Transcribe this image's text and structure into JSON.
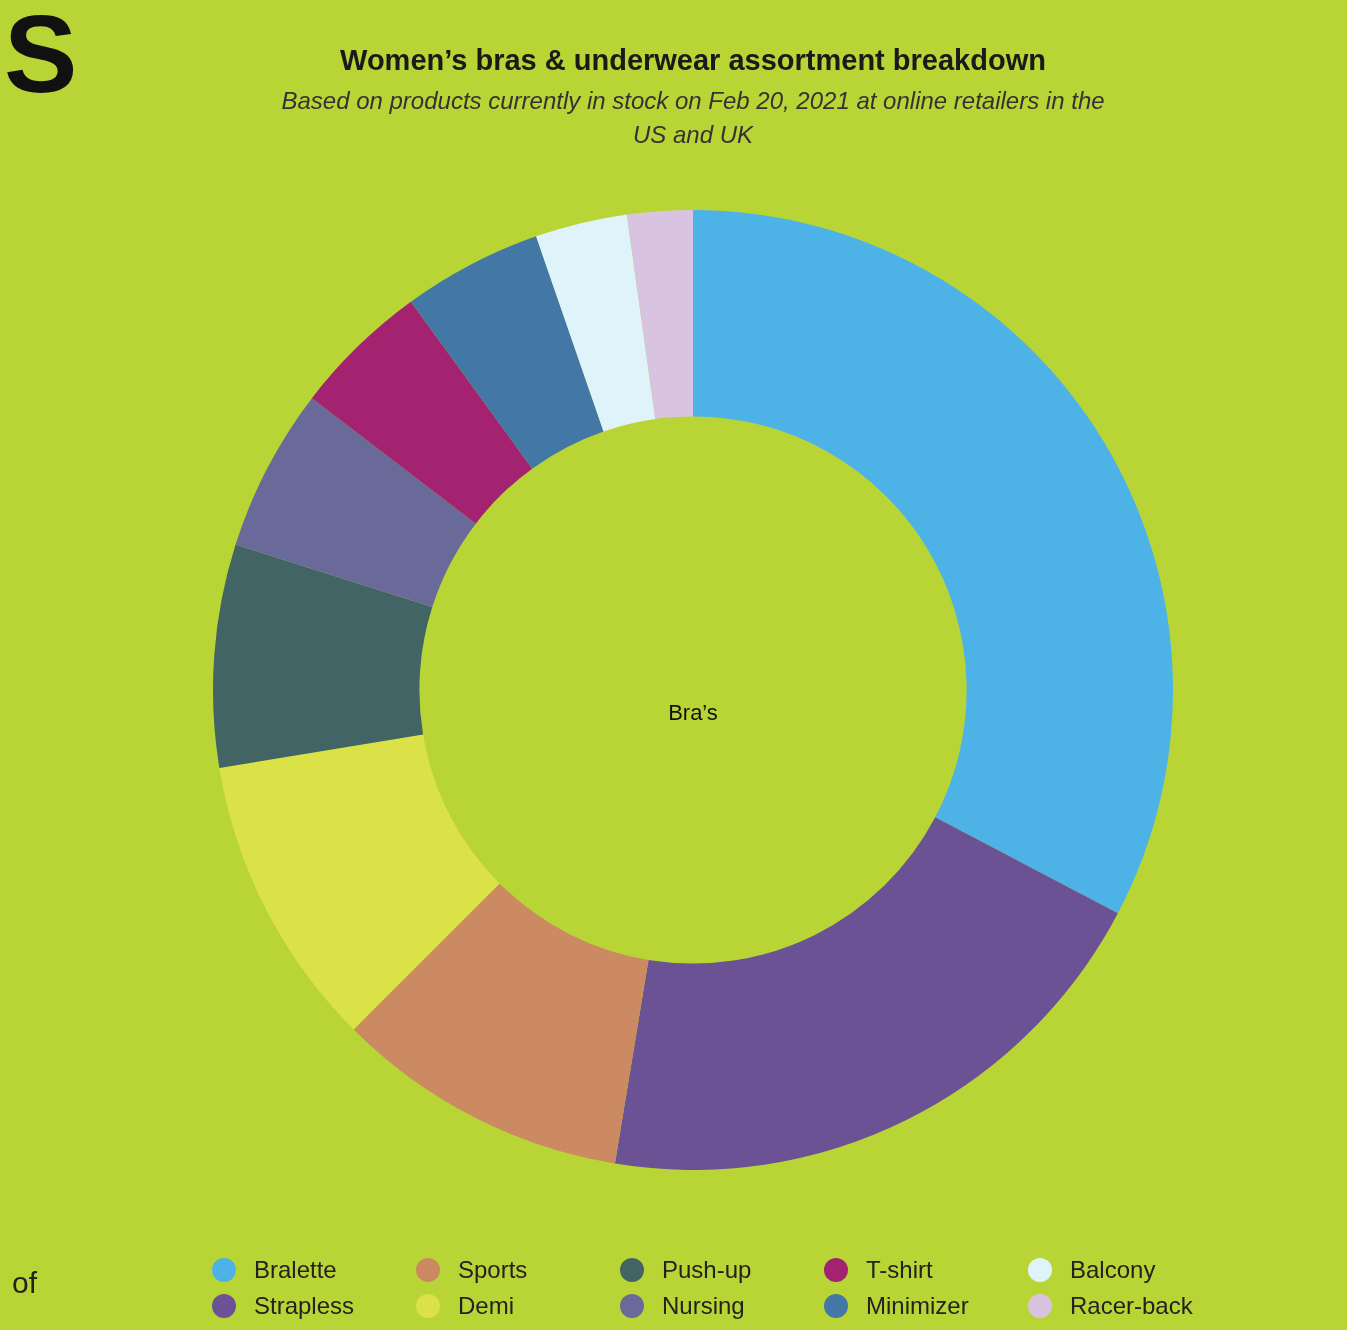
{
  "chart_data": {
    "type": "donut",
    "title": "Women’s bras & underwear assortment breakdown",
    "subtitle": "Based on products currently in stock on Feb 20, 2021 at online retailers in the US and UK",
    "categories": [
      "Bralette",
      "Strapless",
      "Sports",
      "Demi",
      "Push-up",
      "Nursing",
      "T-shirt",
      "Minimizer",
      "Balcony",
      "Racer-back"
    ],
    "values": [
      32.7,
      19.9,
      9.9,
      9.9,
      7.5,
      5.5,
      4.6,
      4.7,
      3.1,
      2.2
    ],
    "colors": [
      "#4db3e6",
      "#6b5294",
      "#cc8a62",
      "#dbe247",
      "#426464",
      "#6a6a9a",
      "#a32370",
      "#4378a6",
      "#dff3fa",
      "#d8c4e0"
    ],
    "legend": "bottom",
    "annotations": [
      "Bra’s",
      "of",
      "S"
    ]
  }
}
